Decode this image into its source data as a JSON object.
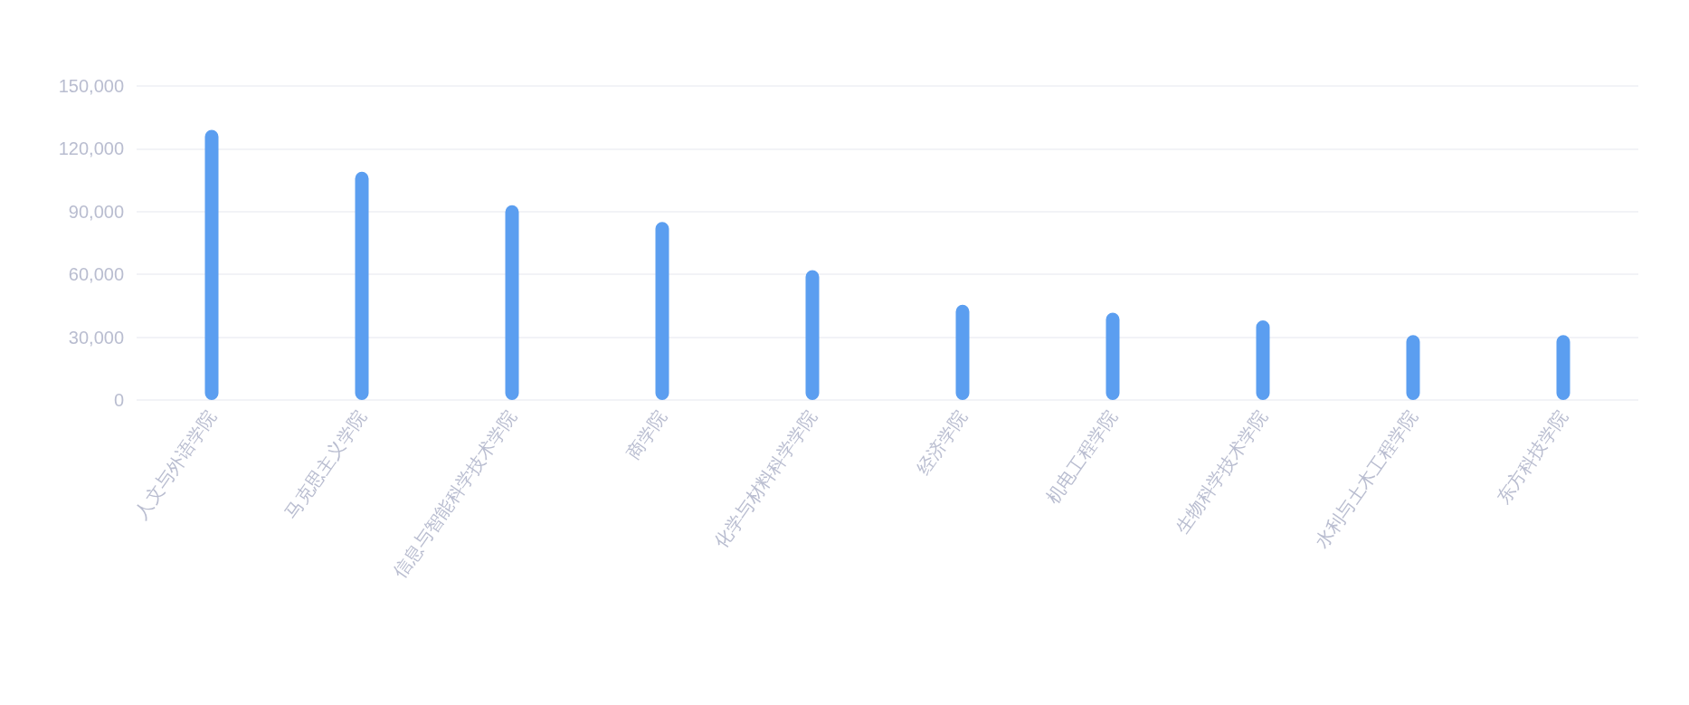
{
  "chart_data": {
    "type": "bar",
    "categories": [
      "人文与外语学院",
      "马克思主义学院",
      "信息与智能科学技术学院",
      "商学院",
      "化学与材料科学学院",
      "经济学院",
      "机电工程学院",
      "生物科学技术学院",
      "水利与土木工程学院",
      "东方科技学院"
    ],
    "values": [
      129000,
      109000,
      93000,
      85000,
      62000,
      45500,
      41700,
      38000,
      31000,
      31000
    ],
    "color": "#5b9ef0",
    "ylim": [
      0,
      150000
    ],
    "yticks": [
      {
        "value": 0,
        "label": "0"
      },
      {
        "value": 30000,
        "label": "30,000"
      },
      {
        "value": 60000,
        "label": "60,000"
      },
      {
        "value": 90000,
        "label": "90,000"
      },
      {
        "value": 120000,
        "label": "120,000"
      },
      {
        "value": 150000,
        "label": "150,000"
      }
    ],
    "grid": "y"
  }
}
